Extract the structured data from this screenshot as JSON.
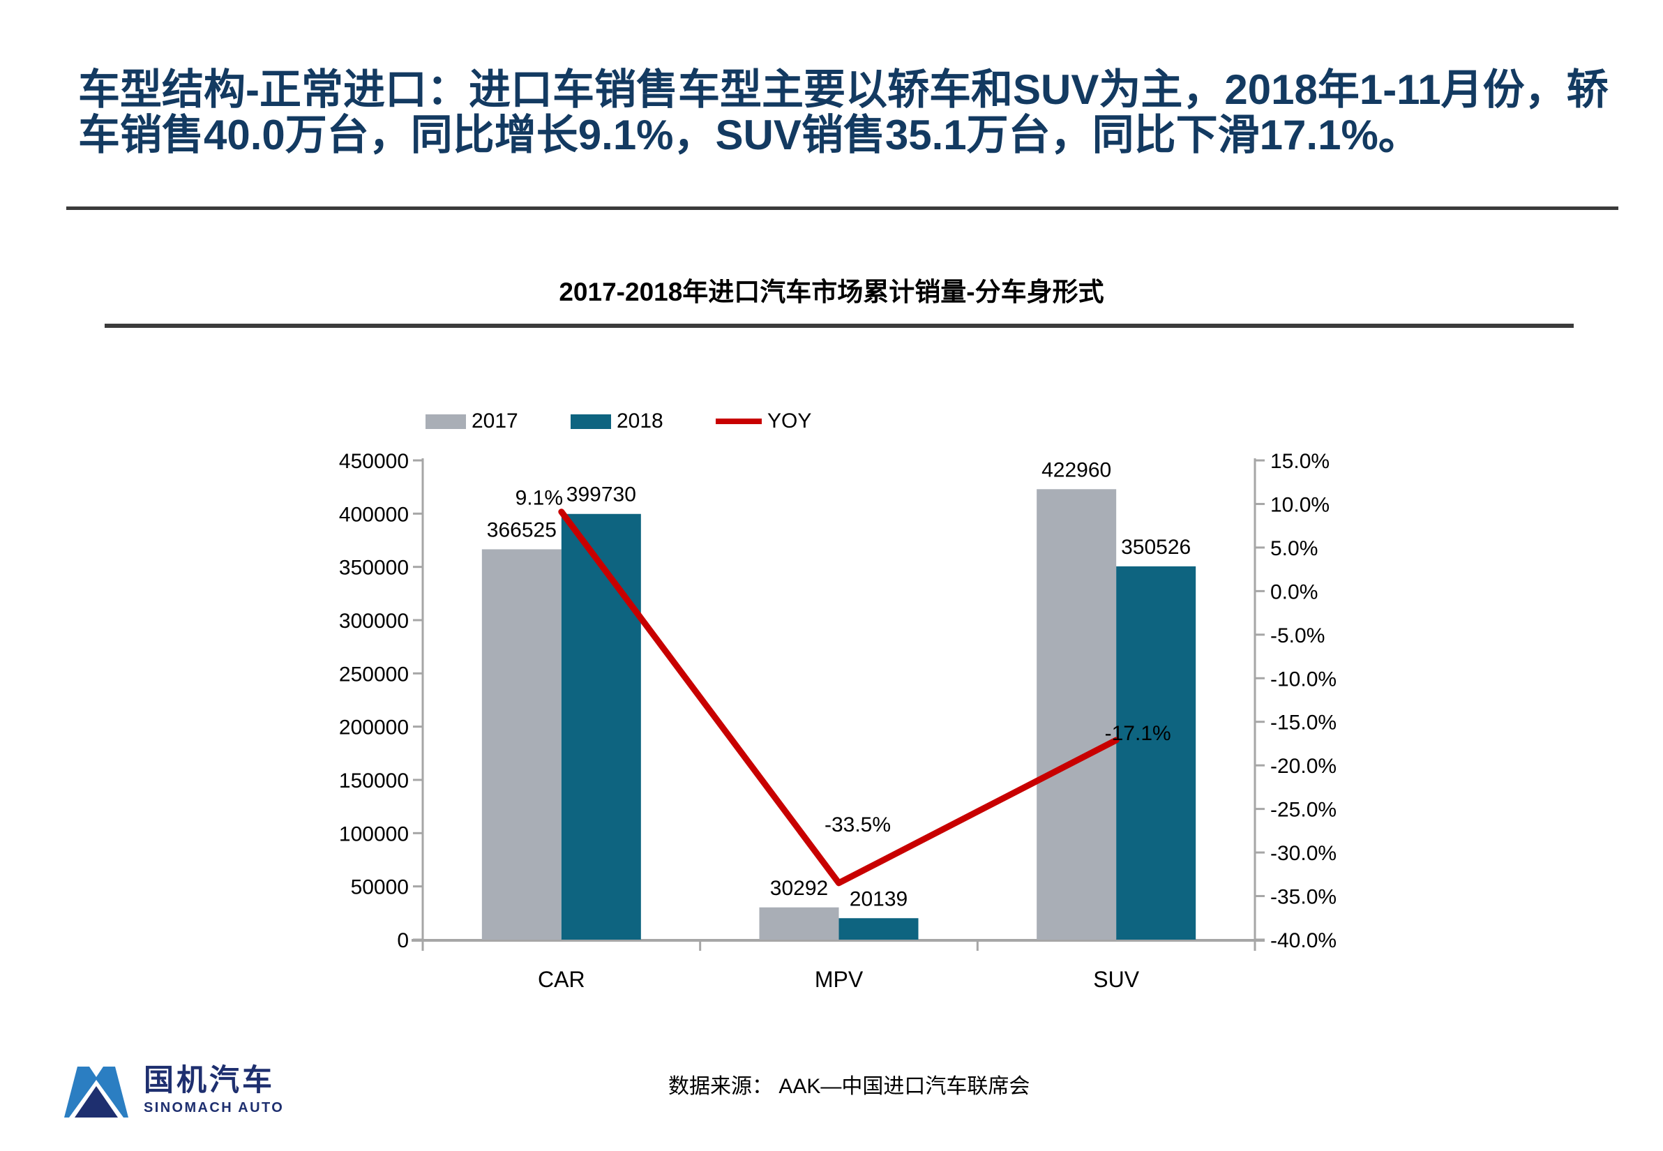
{
  "header": {
    "title": "车型结构-正常进口：进口车销售车型主要以轿车和SUV为主，2018年1-11月份，轿车销售40.0万台，同比增长9.1%，SUV销售35.1万台，同比下滑17.1%。",
    "title_color": "#133a61"
  },
  "chart_data": {
    "type": "bar",
    "title": "2017-2018年进口汽车市场累计销量-分车身形式",
    "categories": [
      "CAR",
      "MPV",
      "SUV"
    ],
    "series": [
      {
        "name": "2017",
        "kind": "bar",
        "axis": "left",
        "color": "#a9aeb6",
        "values": [
          366525,
          30292,
          422960
        ]
      },
      {
        "name": "2018",
        "kind": "bar",
        "axis": "left",
        "color": "#0e6480",
        "values": [
          399730,
          20139,
          350526
        ]
      },
      {
        "name": "YOY",
        "kind": "line",
        "axis": "right",
        "color": "#c80000",
        "values": [
          9.1,
          -33.5,
          -17.1
        ],
        "labels": [
          "9.1%",
          "-33.5%",
          "-17.1%"
        ]
      }
    ],
    "left_axis": {
      "min": 0,
      "max": 450000,
      "step": 50000,
      "tick_labels": [
        "450000",
        "400000",
        "350000",
        "300000",
        "250000",
        "200000",
        "150000",
        "100000",
        "50000",
        "0"
      ]
    },
    "right_axis": {
      "min": -40,
      "max": 15,
      "step": 5,
      "tick_labels": [
        "15.0%",
        "10.0%",
        "5.0%",
        "0.0%",
        "-5.0%",
        "-10.0%",
        "-15.0%",
        "-20.0%",
        "-25.0%",
        "-30.0%",
        "-35.0%",
        "-40.0%"
      ]
    },
    "legend_position": "top",
    "grid": false,
    "axis_color": "#a6a6a6"
  },
  "source": {
    "text": "数据来源： AAK—中国进口汽车联席会"
  },
  "logo": {
    "cn": "国机汽车",
    "en": "SINOMACH AUTO",
    "mark_blue": "#2b7ec2",
    "mark_navy": "#1e2f6f",
    "text_color": "#1e2f6f"
  }
}
